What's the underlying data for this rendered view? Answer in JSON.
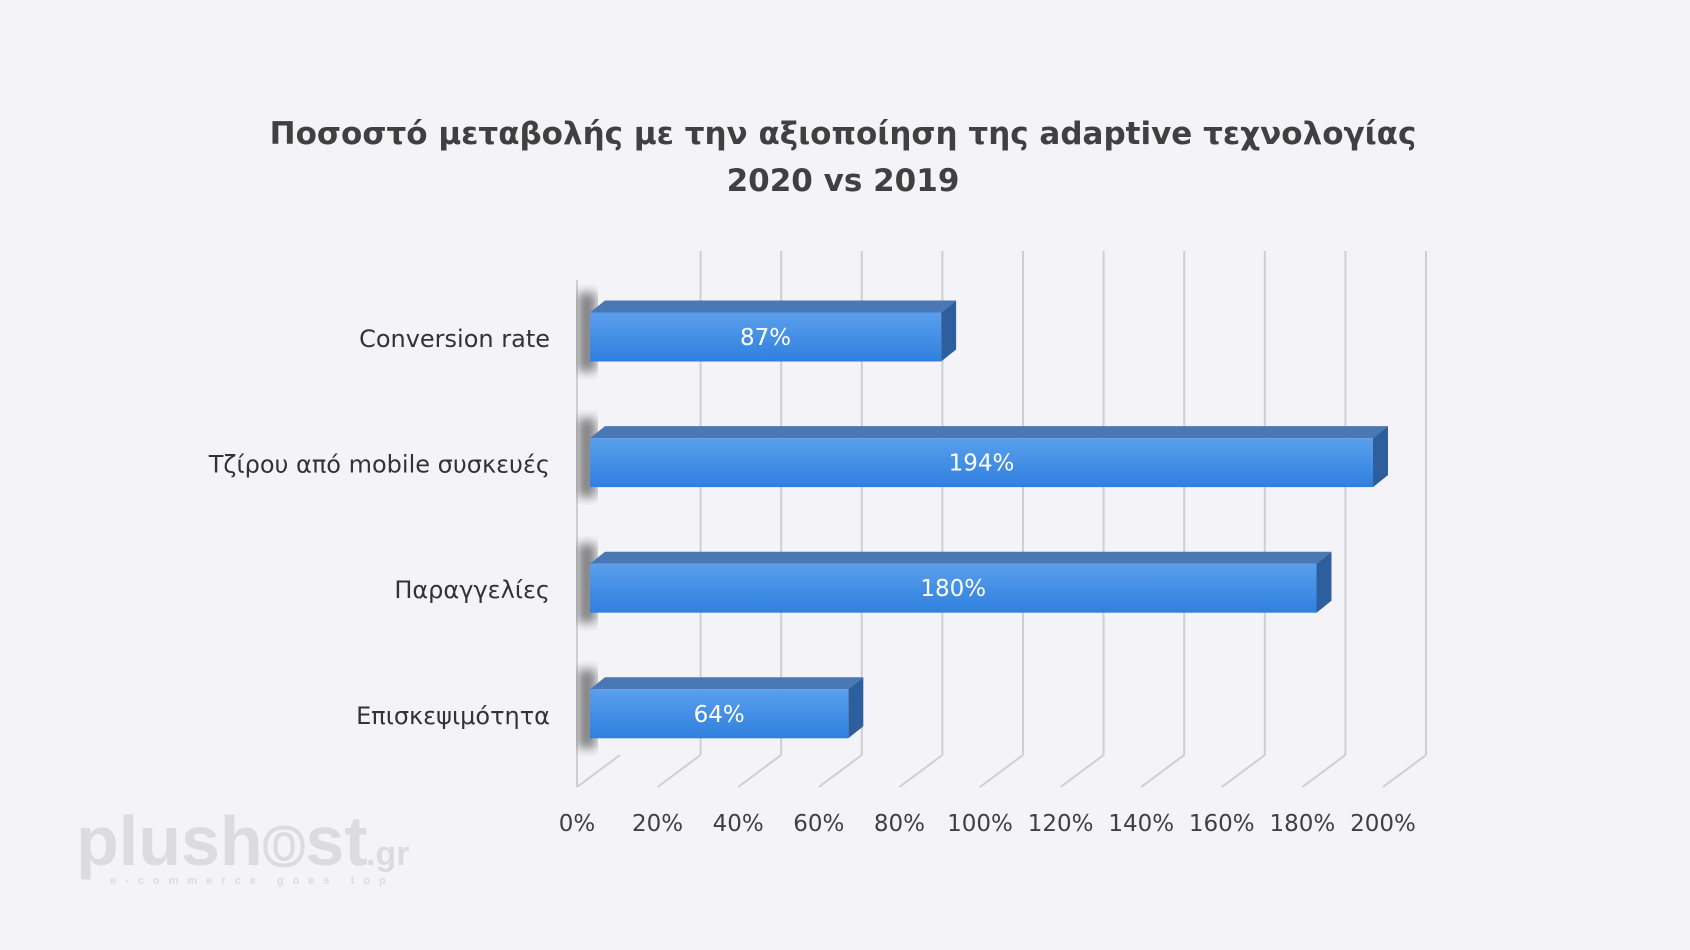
{
  "chart_data": {
    "type": "bar",
    "orientation": "horizontal",
    "style": "3d",
    "title": [
      "Ποσοστό μεταβολής με την αξιοποίηση της adaptive τεχνολογίας",
      "2020 vs 2019"
    ],
    "categories": [
      "Conversion rate",
      "Τζίρου από mobile συσκευές",
      "Παραγγελίες",
      "Επισκεψιμότητα"
    ],
    "values": [
      87,
      194,
      180,
      64
    ],
    "data_labels": [
      "87%",
      "194%",
      "180%",
      "64%"
    ],
    "xlim": [
      0,
      200
    ],
    "x_ticks": [
      "0%",
      "20%",
      "40%",
      "60%",
      "80%",
      "100%",
      "120%",
      "140%",
      "160%",
      "180%",
      "200%"
    ],
    "grid": true,
    "legend": "none",
    "colors": {
      "bar_front": "#3a8be3",
      "bar_top": "#4a78b4",
      "bar_side": "#2d5f9e",
      "background": "#f4f3f7"
    }
  },
  "logo": {
    "text": "plushost",
    "suffix": ".gr",
    "tagline": "e-commerce goes top"
  }
}
